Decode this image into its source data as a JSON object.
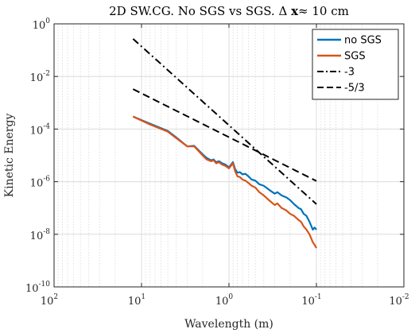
{
  "chart_data": {
    "type": "line",
    "title": "2D SW.CG. No SGS vs SGS. Δ x≈ 10 cm",
    "title_parts": {
      "pre": "2D SW.CG. No SGS vs SGS. Δ ",
      "bold": "x",
      "post": "≈ 10 cm"
    },
    "xlabel": "Wavelength (m)",
    "ylabel": "Kinetic Energy",
    "x_scale": "log",
    "y_scale": "log",
    "x_reversed": true,
    "xlim": [
      100,
      0.01
    ],
    "ylim": [
      1e-10,
      1
    ],
    "x_ticks": [
      100,
      10,
      1,
      0.1,
      0.01
    ],
    "x_tick_labels": [
      {
        "base": "10",
        "exp": "2"
      },
      {
        "base": "10",
        "exp": "1"
      },
      {
        "base": "10",
        "exp": "0"
      },
      {
        "base": "10",
        "exp": "-1"
      },
      {
        "base": "10",
        "exp": "-2"
      }
    ],
    "y_ticks": [
      1e-10,
      1e-08,
      1e-06,
      0.0001,
      0.01,
      1
    ],
    "y_tick_labels": [
      {
        "base": "10",
        "exp": "-10"
      },
      {
        "base": "10",
        "exp": "-8"
      },
      {
        "base": "10",
        "exp": "-6"
      },
      {
        "base": "10",
        "exp": "-4"
      },
      {
        "base": "10",
        "exp": "-2"
      },
      {
        "base": "10",
        "exp": "0"
      }
    ],
    "grid": true,
    "minor_grid": true,
    "legend_position": "top-right",
    "series": [
      {
        "name": "no SGS",
        "color": "#0072BD",
        "style": "solid",
        "x": [
          12.5,
          8.0,
          5.0,
          4.0,
          3.0,
          2.5,
          2.0,
          1.8,
          1.6,
          1.5,
          1.4,
          1.3,
          1.2,
          1.1,
          1.0,
          0.9,
          0.85,
          0.8,
          0.75,
          0.7,
          0.65,
          0.6,
          0.55,
          0.5,
          0.45,
          0.4,
          0.35,
          0.3,
          0.28,
          0.25,
          0.22,
          0.2,
          0.18,
          0.16,
          0.15,
          0.14,
          0.13,
          0.12,
          0.11,
          0.105,
          0.1
        ],
        "y": [
          0.0003,
          0.00016,
          8.5e-05,
          4.8e-05,
          2.2e-05,
          2.3e-05,
          1.1e-05,
          8e-06,
          6.5e-06,
          7e-06,
          5.5e-06,
          6e-06,
          5e-06,
          4.5e-06,
          3.5e-06,
          5.5e-06,
          3e-06,
          2.2e-06,
          2.3e-06,
          1.9e-06,
          2e-06,
          1.6e-06,
          1.2e-06,
          1.1e-06,
          8e-07,
          7e-07,
          5e-07,
          3.5e-07,
          4e-07,
          3e-07,
          2.5e-07,
          2e-07,
          1.4e-07,
          1e-07,
          9e-08,
          6e-08,
          5e-08,
          3e-08,
          1.5e-08,
          1.8e-08,
          1.5e-08
        ]
      },
      {
        "name": "SGS",
        "color": "#D95319",
        "style": "solid",
        "x": [
          12.5,
          8.0,
          5.0,
          4.0,
          3.0,
          2.5,
          2.0,
          1.8,
          1.6,
          1.5,
          1.4,
          1.3,
          1.2,
          1.1,
          1.0,
          0.9,
          0.85,
          0.8,
          0.75,
          0.7,
          0.65,
          0.6,
          0.55,
          0.5,
          0.45,
          0.4,
          0.35,
          0.3,
          0.28,
          0.25,
          0.22,
          0.2,
          0.18,
          0.16,
          0.15,
          0.14,
          0.13,
          0.12,
          0.11,
          0.105,
          0.1
        ],
        "y": [
          0.0003,
          0.00015,
          8e-05,
          4.5e-05,
          2.2e-05,
          2.2e-05,
          1e-05,
          7e-06,
          6e-06,
          6.5e-06,
          5e-06,
          5.5e-06,
          4.5e-06,
          4e-06,
          3.2e-06,
          5e-06,
          2.5e-06,
          1.6e-06,
          1.5e-06,
          1.2e-06,
          1.1e-06,
          9e-07,
          7e-07,
          6e-07,
          4e-07,
          3e-07,
          2e-07,
          1.3e-07,
          1.5e-07,
          1e-07,
          8e-08,
          6e-08,
          5e-08,
          3.5e-08,
          3e-08,
          2e-08,
          1.5e-08,
          1e-08,
          5e-09,
          4e-09,
          3e-09
        ]
      },
      {
        "name": "-3",
        "color": "#000000",
        "style": "dash-dot",
        "x": [
          12.5,
          0.1
        ],
        "y": [
          0.27,
          1.4e-07
        ]
      },
      {
        "name": "-5/3",
        "color": "#000000",
        "style": "dashed",
        "x": [
          12.5,
          0.1
        ],
        "y": [
          0.0033,
          1.06e-06
        ]
      }
    ]
  }
}
